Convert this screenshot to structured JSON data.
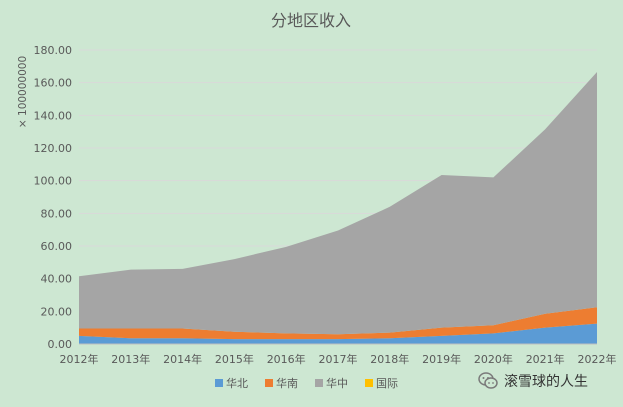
{
  "chart_data": {
    "type": "area",
    "stacked": true,
    "title": "分地区收入",
    "yunit": "× 100000000",
    "categories": [
      "2012年",
      "2013年",
      "2014年",
      "2015年",
      "2016年",
      "2017年",
      "2018年",
      "2019年",
      "2020年",
      "2021年",
      "2022年"
    ],
    "series": [
      {
        "name": "华北",
        "color": "#5b9bd5",
        "values": [
          5.0,
          3.5,
          3.5,
          3.0,
          3.0,
          3.0,
          3.5,
          5.0,
          6.5,
          10.0,
          12.5
        ]
      },
      {
        "name": "华南",
        "color": "#ed7d31",
        "values": [
          4.5,
          6.0,
          6.0,
          4.5,
          3.5,
          3.0,
          3.5,
          5.0,
          5.0,
          8.5,
          10.0
        ]
      },
      {
        "name": "华中",
        "color": "#a5a5a5",
        "values": [
          32.0,
          36.0,
          36.5,
          44.5,
          53.0,
          63.5,
          77.0,
          93.5,
          90.5,
          113.0,
          144.0
        ]
      },
      {
        "name": "国际",
        "color": "#ffc000",
        "values": [
          0,
          0,
          0,
          0,
          0,
          0,
          0,
          0,
          0,
          0,
          0
        ]
      }
    ],
    "ylim": [
      0,
      180
    ],
    "yticks": [
      "0.00",
      "20.00",
      "40.00",
      "60.00",
      "80.00",
      "100.00",
      "120.00",
      "140.00",
      "160.00",
      "180.00"
    ],
    "grid": true,
    "legend_position": "bottom"
  },
  "watermark": {
    "text": "滚雪球的人生",
    "icon": "wechat-icon"
  }
}
